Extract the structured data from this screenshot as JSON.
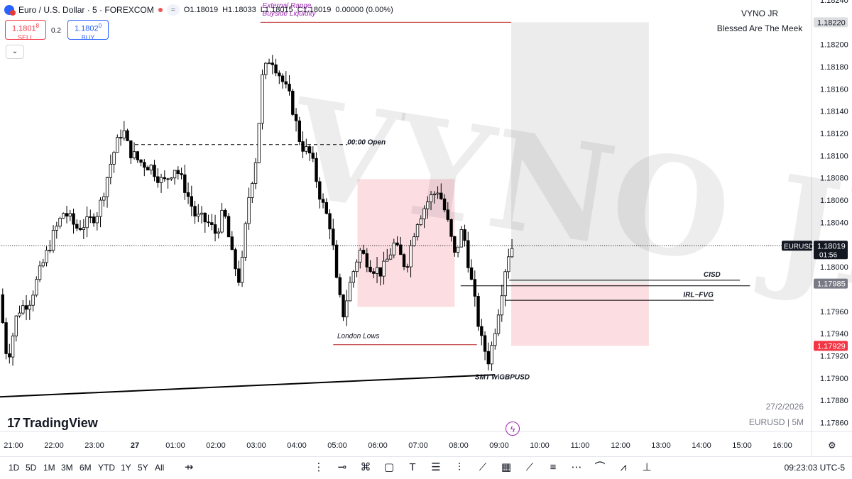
{
  "header": {
    "symbol_line": "Euro / U.S. Dollar · 5 · FOREXCOM",
    "open": "O1.18019",
    "high": "H1.18033",
    "low": "L1.18015",
    "close": "C1.18019",
    "change": "0.00000 (0.00%)"
  },
  "trade": {
    "sell_price": "1.1801",
    "sell_super": "8",
    "sell_label": "SELL",
    "spread": "0.2",
    "buy_price": "1.1802",
    "buy_super": "0",
    "buy_label": "BUY"
  },
  "author": {
    "name": "VYNO JR",
    "tagline": "Blessed Are The Meek"
  },
  "watermark": "VYNO JR",
  "footer": {
    "logo_text": "TradingView",
    "date": "27/2/2026",
    "symbol_tf": "EURUSD | 5M",
    "clock": "09:23:03 UTC-5"
  },
  "timeframes": [
    "1D",
    "5D",
    "1M",
    "3M",
    "6M",
    "YTD",
    "1Y",
    "5Y",
    "All"
  ],
  "tool_icons": [
    "cursor-icon",
    "horizontal-line-icon",
    "node-path-icon",
    "rectangle-icon",
    "text-icon",
    "fib-levels-icon",
    "long-position-icon",
    "brush-icon",
    "grid-icon",
    "trend-line-icon",
    "parallel-channel-icon",
    "pitchfork-icon",
    "polyline-icon",
    "path-icon",
    "measure-icon"
  ],
  "colors": {
    "bull": "#ffffff",
    "bear": "#000000",
    "wick": "#000000",
    "zone_pink": "#fbdde2",
    "zone_grey": "#ececec",
    "purple_text": "#9c27b0",
    "red_badge": "#f23645",
    "grey_badge": "#787b86"
  },
  "chart_data": {
    "type": "candlestick",
    "symbol": "EURUSD",
    "timeframe": "5",
    "y_axis": {
      "range": [
        1.17852,
        1.1824
      ],
      "ticks": [
        "1.18240",
        "1.18200",
        "1.18180",
        "1.18160",
        "1.18140",
        "1.18120",
        "1.18100",
        "1.18080",
        "1.18060",
        "1.18040",
        "1.18000",
        "1.17960",
        "1.17940",
        "1.17920",
        "1.17900",
        "1.17880",
        "1.17860"
      ],
      "tick_values": [
        1.1824,
        1.182,
        1.1818,
        1.1816,
        1.1814,
        1.1812,
        1.181,
        1.1808,
        1.1806,
        1.1804,
        1.18,
        1.1796,
        1.1794,
        1.1792,
        1.179,
        1.1788,
        1.1786
      ]
    },
    "x_axis": {
      "ticks": [
        "21:00",
        "22:00",
        "23:00",
        "27",
        "01:00",
        "02:00",
        "03:00",
        "04:00",
        "05:00",
        "06:00",
        "07:00",
        "08:00",
        "09:00",
        "10:00",
        "11:00",
        "12:00",
        "13:00",
        "14:00",
        "15:00",
        "16:00"
      ],
      "tick_hours": [
        -3,
        -2,
        -1,
        0,
        1,
        2,
        3,
        4,
        5,
        6,
        7,
        8,
        9,
        10,
        11,
        12,
        13,
        14,
        15,
        16
      ]
    },
    "price_badges": [
      {
        "label": "1.18220",
        "value": 1.1822,
        "style": "grey-light"
      },
      {
        "label": "EURUSD",
        "value": 1.18019,
        "style": "black-tag"
      },
      {
        "label": "1.18019",
        "value": 1.18019,
        "style": "black",
        "sub": "01:56"
      },
      {
        "label": "1.17985",
        "value": 1.17985,
        "style": "grey"
      },
      {
        "label": "1.17929",
        "value": 1.17929,
        "style": "red"
      }
    ],
    "current_price": 1.18019,
    "zones": [
      {
        "name": "range-zone",
        "h1": 5.5,
        "h2": 7.9,
        "top": 1.18079,
        "bottom": 1.17964,
        "color": "#fbdde2"
      },
      {
        "name": "target-zone",
        "h1": 9.3,
        "h2": 12.7,
        "top": 1.1822,
        "bottom": 1.17985,
        "color": "#ececec"
      },
      {
        "name": "stop-zone",
        "h1": 9.3,
        "h2": 12.7,
        "top": 1.17985,
        "bottom": 1.17929,
        "color": "#fbdde2"
      }
    ],
    "annotations": [
      {
        "text": "External Range",
        "color": "#9c27b0",
        "italic": true,
        "h": 3.15,
        "price": 1.18233
      },
      {
        "text": "Buyside Liquidity",
        "color": "#9c27b0",
        "italic": true,
        "h": 3.15,
        "price": 1.18226
      },
      {
        "text": "00:00 Open",
        "color": "#131722",
        "italic": true,
        "bold": true,
        "h": 5.25,
        "price": 1.1811
      },
      {
        "text": "London Lows",
        "color": "#131722",
        "italic": true,
        "h": 5.0,
        "price": 1.17936
      },
      {
        "text": "SMT w\\GBPUSD",
        "color": "#131722",
        "italic": true,
        "bold": true,
        "h": 8.4,
        "price": 1.17899
      },
      {
        "text": "CISD",
        "color": "#131722",
        "italic": true,
        "bold": true,
        "h": 14.05,
        "price": 1.17991
      },
      {
        "text": "IRL~FVG",
        "color": "#131722",
        "italic": true,
        "bold": true,
        "h": 13.55,
        "price": 1.17973
      }
    ],
    "lines": [
      {
        "name": "buyside-liquidity-line",
        "h1": 3.1,
        "p1": 1.1822,
        "h2": 9.3,
        "p2": 1.1822,
        "color": "#b71c1c",
        "dash": false
      },
      {
        "name": "midnight-open-line",
        "h1": 0.0,
        "p1": 1.1811,
        "h2": 5.25,
        "p2": 1.1811,
        "color": "#000000",
        "dash": true
      },
      {
        "name": "london-lows-line",
        "h1": 4.9,
        "p1": 1.1793,
        "h2": 8.45,
        "p2": 1.1793,
        "color": "#b71c1c",
        "dash": false
      },
      {
        "name": "smt-trend-line",
        "h1": -3.4,
        "p1": 1.17883,
        "h2": 8.9,
        "p2": 1.17903,
        "color": "#000000",
        "dash": false
      },
      {
        "name": "cisd-line",
        "h1": 9.25,
        "p1": 1.17988,
        "h2": 14.95,
        "p2": 1.17988,
        "color": "#000000",
        "dash": false
      },
      {
        "name": "cisd-upper-line",
        "h1": 8.05,
        "p1": 1.17983,
        "h2": 15.2,
        "p2": 1.17983,
        "color": "#000000",
        "dash": false
      },
      {
        "name": "fvg-line",
        "h1": 9.15,
        "p1": 1.1797,
        "h2": 14.3,
        "p2": 1.1797,
        "color": "#000000",
        "dash": false
      },
      {
        "name": "current-price-line",
        "h1": -3.4,
        "p1": 1.18019,
        "h2": 16.9,
        "p2": 1.18019,
        "color": "#000000",
        "dash": "dot"
      }
    ],
    "path": [
      [
        -3.35,
        1.17975
      ],
      [
        -3.15,
        1.17915
      ],
      [
        -2.9,
        1.1796
      ],
      [
        -2.6,
        1.1797
      ],
      [
        -2.3,
        1.18
      ],
      [
        -2.0,
        1.1803
      ],
      [
        -1.75,
        1.1805
      ],
      [
        -1.45,
        1.18035
      ],
      [
        -1.15,
        1.1804
      ],
      [
        -0.9,
        1.1805
      ],
      [
        -0.55,
        1.181
      ],
      [
        -0.3,
        1.18125
      ],
      [
        -0.15,
        1.18105
      ],
      [
        0.1,
        1.18095
      ],
      [
        0.4,
        1.1809
      ],
      [
        0.7,
        1.18075
      ],
      [
        1.0,
        1.1809
      ],
      [
        1.25,
        1.1807
      ],
      [
        1.5,
        1.18045
      ],
      [
        1.8,
        1.1804
      ],
      [
        2.0,
        1.1803
      ],
      [
        2.2,
        1.1805
      ],
      [
        2.4,
        1.1801
      ],
      [
        2.6,
        1.17985
      ],
      [
        2.8,
        1.1806
      ],
      [
        3.0,
        1.181
      ],
      [
        3.15,
        1.1817
      ],
      [
        3.35,
        1.1819
      ],
      [
        3.55,
        1.18175
      ],
      [
        3.85,
        1.1815
      ],
      [
        4.1,
        1.1811
      ],
      [
        4.35,
        1.181
      ],
      [
        4.6,
        1.1806
      ],
      [
        4.85,
        1.18035
      ],
      [
        5.0,
        1.1798
      ],
      [
        5.15,
        1.17958
      ],
      [
        5.35,
        1.1799
      ],
      [
        5.55,
        1.18015
      ],
      [
        5.85,
        1.18
      ],
      [
        6.1,
        1.17995
      ],
      [
        6.4,
        1.1802
      ],
      [
        6.7,
        1.18
      ],
      [
        6.95,
        1.1804
      ],
      [
        7.25,
        1.1806
      ],
      [
        7.5,
        1.1807
      ],
      [
        7.7,
        1.18045
      ],
      [
        7.9,
        1.1801
      ],
      [
        8.1,
        1.18035
      ],
      [
        8.3,
        1.1799
      ],
      [
        8.55,
        1.17935
      ],
      [
        8.75,
        1.17915
      ],
      [
        9.0,
        1.17965
      ],
      [
        9.2,
        1.1801
      ],
      [
        9.35,
        1.1802
      ]
    ]
  }
}
